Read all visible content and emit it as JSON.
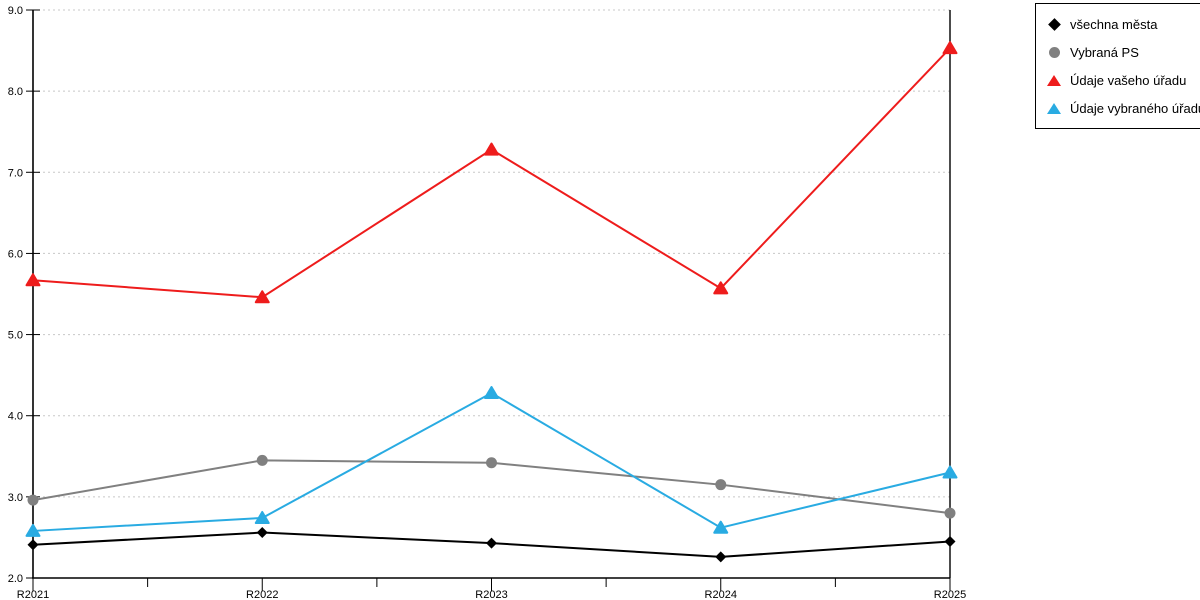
{
  "chart_data": {
    "type": "line",
    "title": "",
    "categories": [
      "R2021",
      "R2022",
      "R2023",
      "R2024",
      "R2025"
    ],
    "series": [
      {
        "name": "všechna města",
        "color": "#000000",
        "marker": "diamond",
        "values": [
          2.41,
          2.56,
          2.43,
          2.26,
          2.45
        ]
      },
      {
        "name": "Vybraná PS",
        "color": "#808080",
        "marker": "circle",
        "values": [
          2.96,
          3.45,
          3.42,
          3.15,
          2.8
        ]
      },
      {
        "name": "Údaje vašeho úřadu",
        "color": "#ee1c1c",
        "marker": "triangle",
        "values": [
          5.67,
          5.46,
          7.28,
          5.57,
          8.53
        ]
      },
      {
        "name": "Údaje vybraného úřadu",
        "color": "#29abe2",
        "marker": "triangle",
        "values": [
          2.58,
          2.74,
          4.28,
          2.62,
          3.3
        ]
      }
    ],
    "xlabel": "",
    "ylabel": "",
    "ylim": [
      2.0,
      9.0
    ],
    "y_ticks": [
      "2.0",
      "3.0",
      "4.0",
      "5.0",
      "6.0",
      "7.0",
      "8.0",
      "9.0"
    ],
    "x_minor_ticks_between_categories": true,
    "grid": "horizontal dotted",
    "grid_color": "#c8c8c8",
    "axis_color": "#000000",
    "legend_position": "top-right"
  }
}
